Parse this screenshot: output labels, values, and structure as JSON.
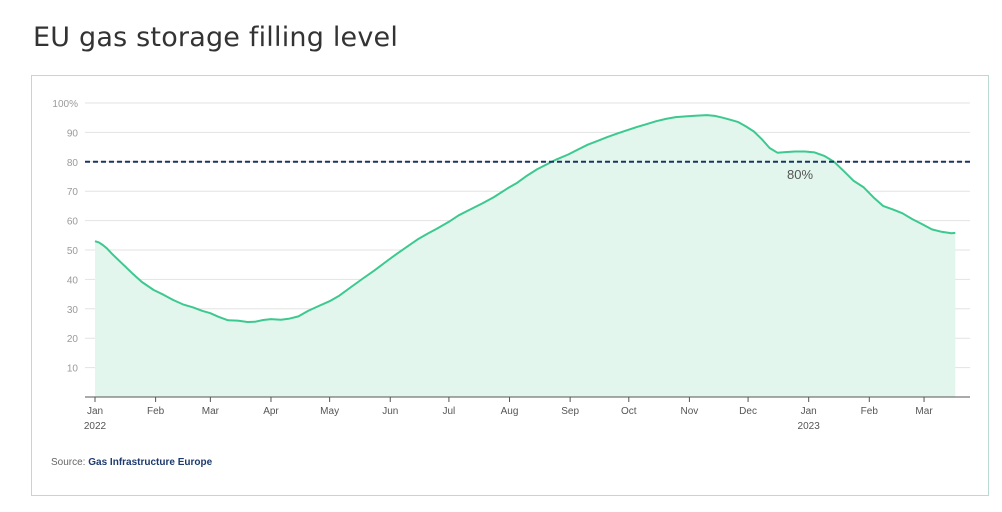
{
  "title": "EU gas storage filling level",
  "source": {
    "label": "Source:",
    "name": "Gas Infrastructure Europe"
  },
  "colors": {
    "line": "#3cc98f",
    "area": "#e2f6ed",
    "threshold": "#1a3563",
    "grid": "#e3e3e3"
  },
  "chart_data": {
    "type": "area",
    "title": "EU gas storage filling level",
    "xlabel": "",
    "ylabel": "",
    "ylim": [
      0,
      100
    ],
    "yticks": [
      10,
      20,
      30,
      40,
      50,
      60,
      70,
      80,
      90,
      100
    ],
    "ytick_labels": [
      "10",
      "20",
      "30",
      "40",
      "50",
      "60",
      "70",
      "80",
      "90",
      "100%"
    ],
    "xlim": [
      "2022-01-01",
      "2023-03-27"
    ],
    "xticks": [
      {
        "date": "2022-01-01",
        "label": "Jan",
        "sublabel": "2022"
      },
      {
        "date": "2022-02-01",
        "label": "Feb",
        "sublabel": ""
      },
      {
        "date": "2022-03-01",
        "label": "Mar",
        "sublabel": ""
      },
      {
        "date": "2022-04-01",
        "label": "Apr",
        "sublabel": ""
      },
      {
        "date": "2022-05-01",
        "label": "May",
        "sublabel": ""
      },
      {
        "date": "2022-06-01",
        "label": "Jun",
        "sublabel": ""
      },
      {
        "date": "2022-07-01",
        "label": "Jul",
        "sublabel": ""
      },
      {
        "date": "2022-08-01",
        "label": "Aug",
        "sublabel": ""
      },
      {
        "date": "2022-09-01",
        "label": "Sep",
        "sublabel": ""
      },
      {
        "date": "2022-10-01",
        "label": "Oct",
        "sublabel": ""
      },
      {
        "date": "2022-11-01",
        "label": "Nov",
        "sublabel": ""
      },
      {
        "date": "2022-12-01",
        "label": "Dec",
        "sublabel": ""
      },
      {
        "date": "2023-01-01",
        "label": "Jan",
        "sublabel": "2023"
      },
      {
        "date": "2023-02-01",
        "label": "Feb",
        "sublabel": ""
      },
      {
        "date": "2023-03-01",
        "label": "Mar",
        "sublabel": ""
      }
    ],
    "threshold": {
      "value": 80,
      "label": "80%"
    },
    "grid": true,
    "series": [
      {
        "points": [
          [
            "2022-01-01",
            53.0
          ],
          [
            "2022-01-03",
            52.6
          ],
          [
            "2022-01-05",
            51.7
          ],
          [
            "2022-01-07",
            50.6
          ],
          [
            "2022-01-10",
            48.5
          ],
          [
            "2022-01-15",
            45.3
          ],
          [
            "2022-01-20",
            42.1
          ],
          [
            "2022-01-25",
            39.1
          ],
          [
            "2022-01-31",
            36.4
          ],
          [
            "2022-02-05",
            34.8
          ],
          [
            "2022-02-10",
            33.0
          ],
          [
            "2022-02-15",
            31.5
          ],
          [
            "2022-02-20",
            30.5
          ],
          [
            "2022-02-25",
            29.3
          ],
          [
            "2022-03-01",
            28.5
          ],
          [
            "2022-03-05",
            27.3
          ],
          [
            "2022-03-10",
            26.1
          ],
          [
            "2022-03-15",
            26.0
          ],
          [
            "2022-03-20",
            25.5
          ],
          [
            "2022-03-24",
            25.6
          ],
          [
            "2022-03-28",
            26.2
          ],
          [
            "2022-04-01",
            26.5
          ],
          [
            "2022-04-06",
            26.3
          ],
          [
            "2022-04-10",
            26.6
          ],
          [
            "2022-04-15",
            27.4
          ],
          [
            "2022-04-20",
            29.3
          ],
          [
            "2022-04-25",
            30.8
          ],
          [
            "2022-05-01",
            32.6
          ],
          [
            "2022-05-06",
            34.5
          ],
          [
            "2022-05-12",
            37.4
          ],
          [
            "2022-05-18",
            40.3
          ],
          [
            "2022-05-24",
            43.1
          ],
          [
            "2022-05-31",
            46.6
          ],
          [
            "2022-06-05",
            49.0
          ],
          [
            "2022-06-10",
            51.3
          ],
          [
            "2022-06-15",
            53.6
          ],
          [
            "2022-06-20",
            55.5
          ],
          [
            "2022-06-25",
            57.3
          ],
          [
            "2022-07-01",
            59.6
          ],
          [
            "2022-07-06",
            61.8
          ],
          [
            "2022-07-12",
            63.8
          ],
          [
            "2022-07-18",
            65.8
          ],
          [
            "2022-07-24",
            68.0
          ],
          [
            "2022-07-31",
            71.0
          ],
          [
            "2022-08-05",
            72.9
          ],
          [
            "2022-08-10",
            75.3
          ],
          [
            "2022-08-15",
            77.4
          ],
          [
            "2022-08-20",
            79.1
          ],
          [
            "2022-08-25",
            80.8
          ],
          [
            "2022-08-31",
            82.5
          ],
          [
            "2022-09-05",
            84.2
          ],
          [
            "2022-09-10",
            85.8
          ],
          [
            "2022-09-15",
            87.1
          ],
          [
            "2022-09-20",
            88.4
          ],
          [
            "2022-09-25",
            89.6
          ],
          [
            "2022-09-30",
            90.7
          ],
          [
            "2022-10-05",
            91.8
          ],
          [
            "2022-10-10",
            92.8
          ],
          [
            "2022-10-15",
            93.8
          ],
          [
            "2022-10-20",
            94.6
          ],
          [
            "2022-10-25",
            95.2
          ],
          [
            "2022-10-31",
            95.5
          ],
          [
            "2022-11-05",
            95.7
          ],
          [
            "2022-11-10",
            95.9
          ],
          [
            "2022-11-14",
            95.6
          ],
          [
            "2022-11-18",
            95.0
          ],
          [
            "2022-11-22",
            94.3
          ],
          [
            "2022-11-26",
            93.5
          ],
          [
            "2022-11-30",
            92.0
          ],
          [
            "2022-12-04",
            90.3
          ],
          [
            "2022-12-08",
            87.7
          ],
          [
            "2022-12-12",
            84.7
          ],
          [
            "2022-12-16",
            83.1
          ],
          [
            "2022-12-20",
            83.3
          ],
          [
            "2022-12-25",
            83.5
          ],
          [
            "2022-12-30",
            83.5
          ],
          [
            "2023-01-04",
            83.2
          ],
          [
            "2023-01-09",
            82.0
          ],
          [
            "2023-01-14",
            80.0
          ],
          [
            "2023-01-19",
            76.8
          ],
          [
            "2023-01-24",
            73.5
          ],
          [
            "2023-01-29",
            71.4
          ],
          [
            "2023-02-03",
            68.0
          ],
          [
            "2023-02-08",
            65.0
          ],
          [
            "2023-02-13",
            63.8
          ],
          [
            "2023-02-18",
            62.5
          ],
          [
            "2023-02-23",
            60.5
          ],
          [
            "2023-02-28",
            58.8
          ],
          [
            "2023-03-05",
            57.0
          ],
          [
            "2023-03-10",
            56.2
          ],
          [
            "2023-03-15",
            55.7
          ],
          [
            "2023-03-17",
            55.8
          ]
        ]
      }
    ]
  }
}
